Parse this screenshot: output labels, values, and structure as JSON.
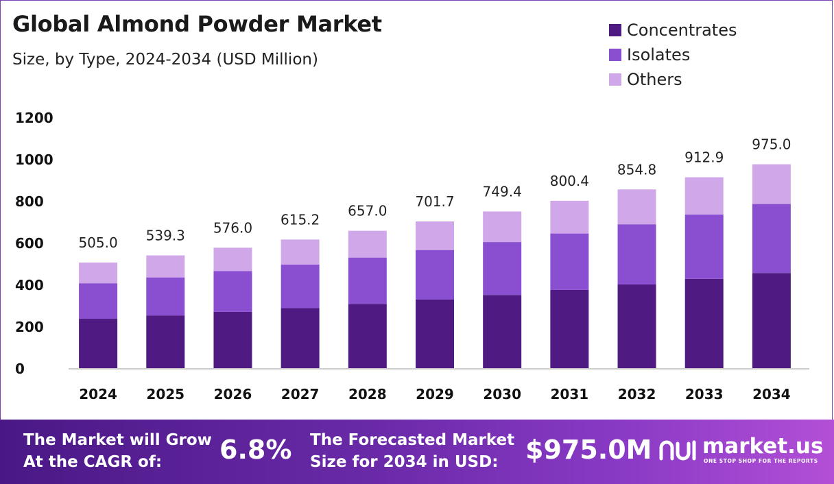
{
  "title": "Global Almond Powder Market",
  "subtitle": "Size, by Type, 2024-2034 (USD Million)",
  "legend": [
    {
      "label": "Concentrates",
      "color": "#4f1a82"
    },
    {
      "label": "Isolates",
      "color": "#8a4fd0"
    },
    {
      "label": "Others",
      "color": "#d0a8ea"
    }
  ],
  "chart_data": {
    "type": "bar",
    "stacked": true,
    "categories": [
      "2024",
      "2025",
      "2026",
      "2027",
      "2028",
      "2029",
      "2030",
      "2031",
      "2032",
      "2033",
      "2034"
    ],
    "series": [
      {
        "name": "Concentrates",
        "values": [
          236,
          252,
          269,
          287,
          307,
          328,
          350,
          374,
          400,
          427,
          455
        ],
        "color": "#4f1a82"
      },
      {
        "name": "Isolates",
        "values": [
          170,
          182,
          195,
          208,
          222,
          237,
          253,
          270,
          288,
          308,
          330
        ],
        "color": "#8a4fd0"
      },
      {
        "name": "Others",
        "values": [
          99,
          105.3,
          112,
          120.2,
          128,
          136.7,
          146.4,
          156.4,
          166.8,
          177.9,
          190
        ],
        "color": "#d0a8ea"
      }
    ],
    "totals": [
      "505.0",
      "539.3",
      "576.0",
      "615.2",
      "657.0",
      "701.7",
      "749.4",
      "800.4",
      "854.8",
      "912.9",
      "975.0"
    ],
    "yticks": [
      "0",
      "200",
      "400",
      "600",
      "800",
      "1000",
      "1200"
    ],
    "ylim": [
      0,
      1200
    ],
    "grid": false,
    "legend_position": "top-right"
  },
  "footer": {
    "cagr_text_line1": "The Market will Grow",
    "cagr_text_line2": "At the CAGR of:",
    "cagr_value": "6.8%",
    "forecast_text_line1": "The Forecasted Market",
    "forecast_text_line2": "Size for 2034 in USD:",
    "forecast_value": "$975.0M",
    "brand_name": "market.us",
    "brand_tagline": "ONE STOP SHOP FOR THE REPORTS"
  }
}
